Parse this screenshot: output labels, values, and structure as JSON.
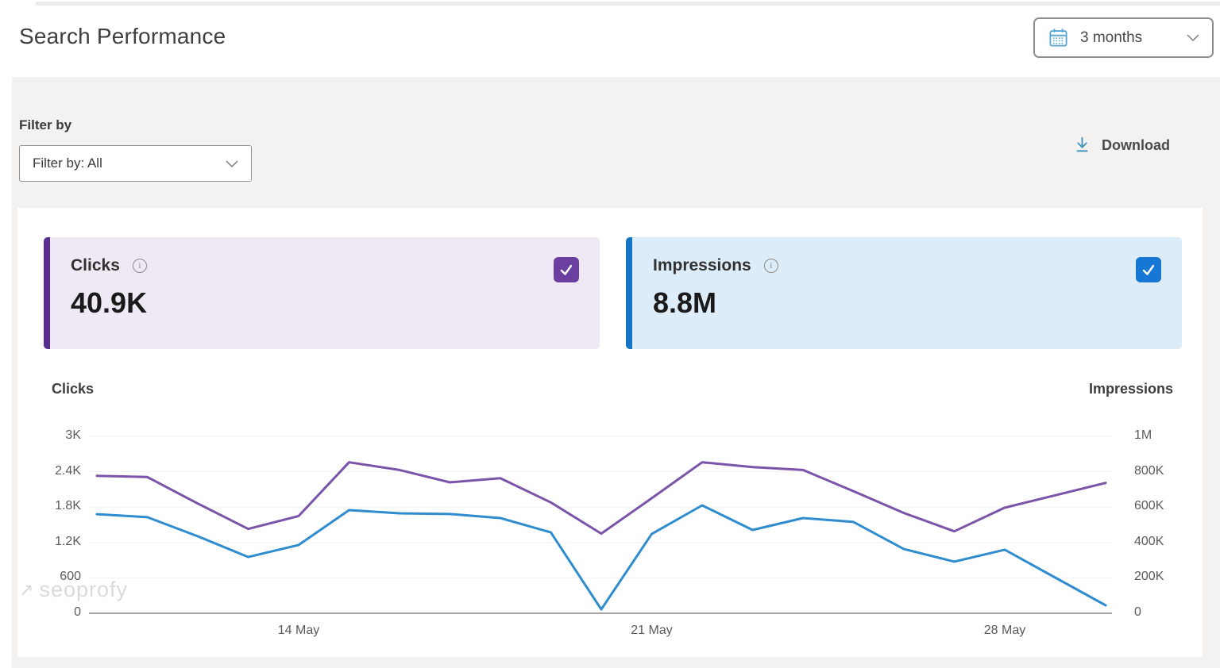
{
  "header": {
    "title": "Search Performance",
    "date_range_value": "3 months"
  },
  "filter": {
    "label": "Filter by",
    "dropdown_value": "Filter by: All"
  },
  "download": {
    "label": "Download"
  },
  "cards": {
    "clicks": {
      "label": "Clicks",
      "value": "40.9K",
      "checked": true,
      "accent_color": "#5a2d91",
      "bg_color": "#efe9f5",
      "checkbox_color": "#6b3fa0"
    },
    "impressions": {
      "label": "Impressions",
      "value": "8.8M",
      "checked": true,
      "accent_color": "#1474c8",
      "bg_color": "#dcecf8",
      "checkbox_color": "#1677d4"
    }
  },
  "watermark": "seoprofy",
  "chart_data": {
    "type": "line",
    "categories": [
      "10 May",
      "11 May",
      "12 May",
      "13 May",
      "14 May",
      "15 May",
      "16 May",
      "17 May",
      "18 May",
      "19 May",
      "20 May",
      "21 May",
      "22 May",
      "23 May",
      "24 May",
      "25 May",
      "26 May",
      "27 May",
      "28 May",
      "29 May",
      "30 May"
    ],
    "x_tick_labels": [
      {
        "index": 4,
        "label": "14 May"
      },
      {
        "index": 11,
        "label": "21 May"
      },
      {
        "index": 18,
        "label": "28 May"
      }
    ],
    "left_axis": {
      "title": "Clicks",
      "max": 3000,
      "ticks": [
        "3K",
        "2.4K",
        "1.8K",
        "1.2K",
        "600",
        "0"
      ]
    },
    "right_axis": {
      "title": "Impressions",
      "max": 1000000,
      "ticks": [
        "1M",
        "800K",
        "600K",
        "400K",
        "200K",
        "0"
      ]
    },
    "grid": "horizontal-faint",
    "series": [
      {
        "name": "Clicks",
        "axis": "left",
        "color": "#7a54a8",
        "values": [
          2330,
          2310,
          1860,
          1430,
          1650,
          2560,
          2430,
          2220,
          2290,
          1880,
          1350,
          1950,
          2560,
          2480,
          2430,
          2070,
          1700,
          1390,
          1790,
          2000,
          2210
        ]
      },
      {
        "name": "Impressions",
        "axis": "right",
        "color": "#2f8cce",
        "values": [
          560000,
          543000,
          435000,
          318000,
          386000,
          583000,
          565000,
          561000,
          538000,
          457000,
          22000,
          448000,
          610000,
          471000,
          538000,
          516000,
          363000,
          292000,
          359000,
          202000,
          45000
        ]
      }
    ]
  }
}
